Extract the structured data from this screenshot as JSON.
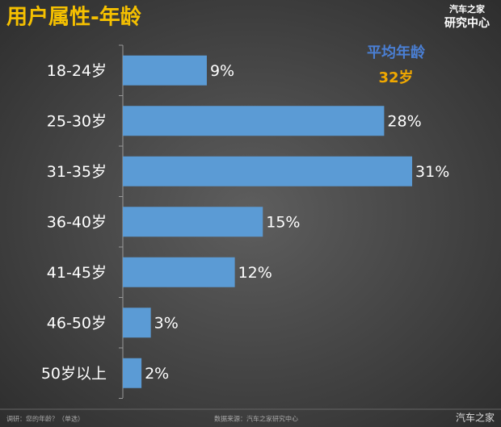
{
  "chart_data": {
    "type": "hbar",
    "title": "用户属性-年龄",
    "logo": [
      "汽车之家",
      "研究中心"
    ],
    "categories": [
      "18-24岁",
      "25-30岁",
      "31-35岁",
      "36-40岁",
      "41-45岁",
      "46-50岁",
      "50岁以上"
    ],
    "values": [
      9,
      28,
      31,
      15,
      12,
      3,
      2
    ],
    "value_labels": [
      "9%",
      "28%",
      "31%",
      "15%",
      "12%",
      "3%",
      "2%"
    ],
    "color": "#5b9bd5",
    "annotations": [
      "平均年龄",
      "32岁"
    ],
    "footnotes": [
      "调研：您的年龄？（单选）",
      "数据来源：汽车之家研究中心"
    ],
    "watermark": "汽车之家"
  }
}
